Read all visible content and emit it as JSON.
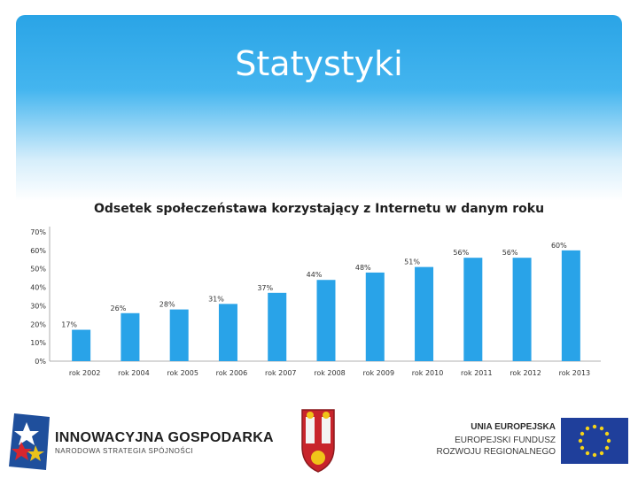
{
  "slide": {
    "title": "Statystyki",
    "colors": {
      "header": "#2aa4e6",
      "bar": "#29a3e8"
    }
  },
  "chart_data": {
    "type": "bar",
    "title": "Odsetek społeczeństawa korzystający z Internetu w danym roku",
    "categories": [
      "rok 2002",
      "rok 2004",
      "rok 2005",
      "rok 2006",
      "rok 2007",
      "rok 2008",
      "rok 2009",
      "rok 2010",
      "rok 2011",
      "rok 2012",
      "rok 2013"
    ],
    "values": [
      17,
      26,
      28,
      31,
      37,
      44,
      48,
      51,
      56,
      56,
      60
    ],
    "data_labels": [
      "17%",
      "26%",
      "28%",
      "31%",
      "37%",
      "44%",
      "48%",
      "51%",
      "56%",
      "56%",
      "60%"
    ],
    "ytick_labels": [
      "0%",
      "10%",
      "20%",
      "30%",
      "40%",
      "50%",
      "60%",
      "70%"
    ],
    "ylim": [
      0,
      70
    ],
    "grid": false,
    "legend": "none"
  },
  "logos": {
    "innowacyjna_line1": "INNOWACYJNA GOSPODARKA",
    "innowacyjna_line2": "NARODOWA STRATEGIA SPÓJNOŚCI",
    "ue_line1": "UNIA EUROPEJSKA",
    "ue_line2": "EUROPEJSKI FUNDUSZ",
    "ue_line3": "ROZWOJU REGIONALNEGO",
    "icons": [
      "innowacyjna-gospodarka-logo-icon",
      "city-coat-of-arms-icon",
      "eu-flag-icon"
    ]
  }
}
